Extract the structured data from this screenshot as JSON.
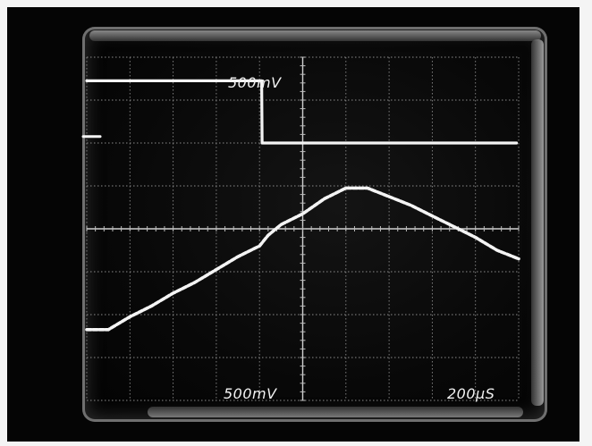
{
  "chart_data": {
    "type": "line",
    "title": "",
    "labels": {
      "ch1_scale": "500mV",
      "ch2_scale": "500mV",
      "timebase": "200µS"
    },
    "grid": true,
    "x_divisions": 10,
    "y_divisions": 8,
    "xlim": [
      0,
      10
    ],
    "ylim": [
      0,
      8
    ],
    "series": [
      {
        "x": [
          0.0,
          4.05,
          4.06,
          9.95
        ],
        "y": [
          7.45,
          7.45,
          6.0,
          6.0
        ]
      },
      {
        "x": [
          0.0,
          0.5,
          1.0,
          1.5,
          2.0,
          2.5,
          3.0,
          3.5,
          4.0,
          4.2,
          4.5,
          5.0,
          5.5,
          6.0,
          6.5,
          7.0,
          7.5,
          8.0,
          8.5,
          9.0,
          9.5,
          10.0
        ],
        "y": [
          1.65,
          1.65,
          1.95,
          2.2,
          2.5,
          2.75,
          3.05,
          3.35,
          3.6,
          3.85,
          4.1,
          4.35,
          4.7,
          4.95,
          4.95,
          4.75,
          4.55,
          4.3,
          4.05,
          3.8,
          3.5,
          3.3
        ]
      }
    ],
    "ch1_ground_marker_y": 6.15
  }
}
